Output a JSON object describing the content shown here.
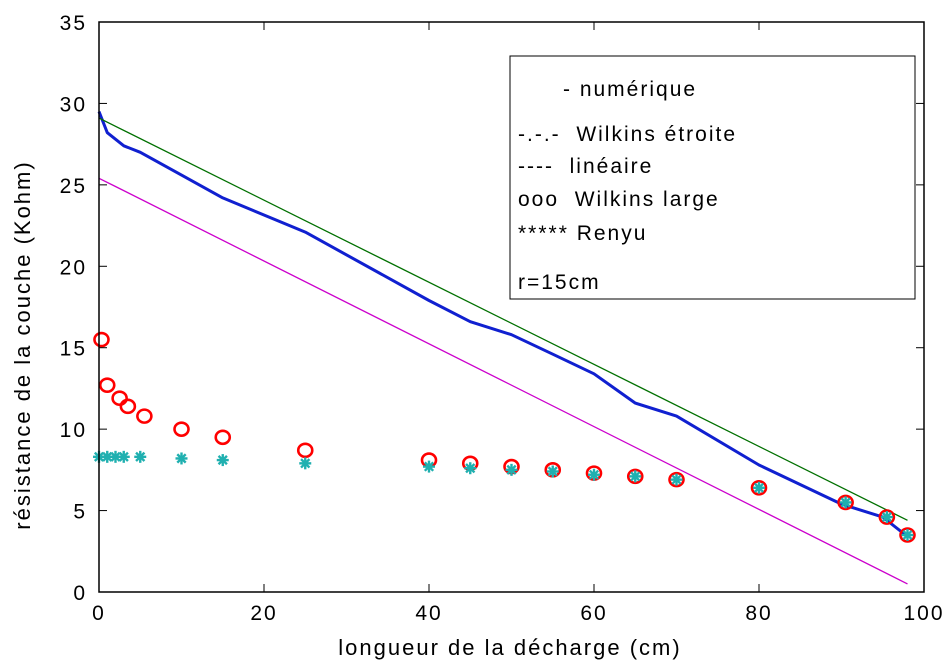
{
  "chart_data": {
    "type": "line",
    "xlabel": "longueur de la décharge (cm)",
    "ylabel": "résistance de la couche (Kohm)",
    "xlim": [
      0,
      100
    ],
    "ylim": [
      0,
      35
    ],
    "xticks": [
      0,
      20,
      40,
      60,
      80,
      100
    ],
    "xtick_labels": [
      "0",
      "20",
      "40",
      "60",
      "80",
      "100"
    ],
    "yticks": [
      0,
      5,
      10,
      15,
      20,
      25,
      30,
      35
    ],
    "ytick_labels": [
      "0",
      "5",
      "10",
      "15",
      "20",
      "25",
      "30",
      "35"
    ],
    "grid": false,
    "legend_position": "top-right",
    "legend_lines": [
      "- numérique",
      "-.-.-  Wilkins étroite",
      "----  linéaire",
      "ooo  Wilkins large",
      "***** Renyu",
      "r=15cm"
    ],
    "series": [
      {
        "style": "line",
        "color": "#1020d0",
        "width": 3,
        "x": [
          0,
          1,
          3,
          5,
          10,
          15,
          25,
          40,
          45,
          50,
          55,
          60,
          65,
          70,
          80,
          90,
          95,
          98
        ],
        "y": [
          29.5,
          28.2,
          27.4,
          27.0,
          25.6,
          24.2,
          22.1,
          17.9,
          16.6,
          15.8,
          14.6,
          13.4,
          11.6,
          10.8,
          7.8,
          5.4,
          4.6,
          3.4
        ]
      },
      {
        "style": "line",
        "color": "#007000",
        "width": 1.3,
        "x": [
          0,
          98
        ],
        "y": [
          29.1,
          4.4
        ]
      },
      {
        "style": "line",
        "color": "#cc00cc",
        "width": 1.3,
        "x": [
          0,
          2,
          98
        ],
        "y": [
          25.4,
          24.9,
          0.5
        ]
      },
      {
        "style": "circle",
        "color": "#ff0000",
        "x": [
          0.3,
          1,
          2.5,
          3.5,
          5.5,
          10,
          15,
          25,
          40,
          45,
          50,
          55,
          60,
          65,
          70,
          80,
          90.5,
          95.5,
          98
        ],
        "y": [
          15.5,
          12.7,
          11.9,
          11.4,
          10.8,
          10.0,
          9.5,
          8.7,
          8.1,
          7.9,
          7.7,
          7.5,
          7.3,
          7.1,
          6.9,
          6.4,
          5.5,
          4.6,
          3.5
        ]
      },
      {
        "style": "star",
        "color": "#20b0b0",
        "x": [
          0,
          1,
          2,
          3,
          5,
          10,
          15,
          25,
          40,
          45,
          50,
          55,
          60,
          65,
          70,
          80,
          90.5,
          95.5,
          98
        ],
        "y": [
          8.3,
          8.3,
          8.3,
          8.3,
          8.3,
          8.2,
          8.1,
          7.9,
          7.7,
          7.6,
          7.5,
          7.4,
          7.2,
          7.1,
          6.9,
          6.4,
          5.5,
          4.6,
          3.5
        ]
      }
    ]
  }
}
